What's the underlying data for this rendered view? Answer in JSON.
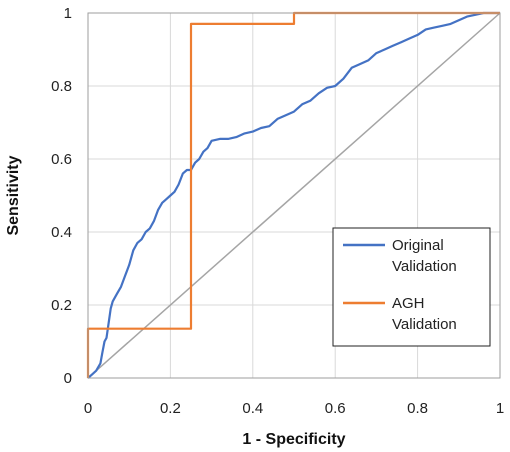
{
  "chart_data": {
    "type": "line",
    "xlabel": "1 - Specificity",
    "ylabel": "Sensitivity",
    "xlim": [
      0,
      1
    ],
    "ylim": [
      0,
      1
    ],
    "xticks": [
      "0",
      "0.2",
      "0.4",
      "0.6",
      "0.8",
      "1"
    ],
    "yticks": [
      "0",
      "0.2",
      "0.4",
      "0.6",
      "0.8",
      "1"
    ],
    "grid": true,
    "legend_position": "lower-right",
    "series": [
      {
        "name": "Original Validation",
        "color": "#4472C4",
        "points": [
          [
            0,
            0
          ],
          [
            0.01,
            0.01
          ],
          [
            0.02,
            0.02
          ],
          [
            0.03,
            0.04
          ],
          [
            0.035,
            0.07
          ],
          [
            0.04,
            0.1
          ],
          [
            0.045,
            0.11
          ],
          [
            0.05,
            0.15
          ],
          [
            0.055,
            0.19
          ],
          [
            0.06,
            0.21
          ],
          [
            0.07,
            0.23
          ],
          [
            0.08,
            0.25
          ],
          [
            0.09,
            0.28
          ],
          [
            0.1,
            0.31
          ],
          [
            0.11,
            0.35
          ],
          [
            0.12,
            0.37
          ],
          [
            0.13,
            0.38
          ],
          [
            0.14,
            0.4
          ],
          [
            0.15,
            0.41
          ],
          [
            0.16,
            0.43
          ],
          [
            0.17,
            0.46
          ],
          [
            0.18,
            0.48
          ],
          [
            0.19,
            0.49
          ],
          [
            0.2,
            0.5
          ],
          [
            0.21,
            0.51
          ],
          [
            0.22,
            0.53
          ],
          [
            0.23,
            0.56
          ],
          [
            0.24,
            0.57
          ],
          [
            0.25,
            0.57
          ],
          [
            0.26,
            0.59
          ],
          [
            0.27,
            0.6
          ],
          [
            0.28,
            0.62
          ],
          [
            0.29,
            0.63
          ],
          [
            0.3,
            0.65
          ],
          [
            0.32,
            0.655
          ],
          [
            0.34,
            0.655
          ],
          [
            0.36,
            0.66
          ],
          [
            0.38,
            0.67
          ],
          [
            0.4,
            0.675
          ],
          [
            0.42,
            0.685
          ],
          [
            0.44,
            0.69
          ],
          [
            0.46,
            0.71
          ],
          [
            0.48,
            0.72
          ],
          [
            0.5,
            0.73
          ],
          [
            0.52,
            0.75
          ],
          [
            0.54,
            0.76
          ],
          [
            0.56,
            0.78
          ],
          [
            0.58,
            0.795
          ],
          [
            0.6,
            0.8
          ],
          [
            0.62,
            0.82
          ],
          [
            0.64,
            0.85
          ],
          [
            0.66,
            0.86
          ],
          [
            0.68,
            0.87
          ],
          [
            0.7,
            0.89
          ],
          [
            0.72,
            0.9
          ],
          [
            0.74,
            0.91
          ],
          [
            0.76,
            0.92
          ],
          [
            0.78,
            0.93
          ],
          [
            0.8,
            0.94
          ],
          [
            0.82,
            0.955
          ],
          [
            0.84,
            0.96
          ],
          [
            0.86,
            0.965
          ],
          [
            0.88,
            0.97
          ],
          [
            0.9,
            0.98
          ],
          [
            0.92,
            0.99
          ],
          [
            0.94,
            0.995
          ],
          [
            0.96,
            1
          ],
          [
            1,
            1
          ]
        ]
      },
      {
        "name": "AGH Validation",
        "color": "#ED7D31",
        "points": [
          [
            0,
            0
          ],
          [
            0,
            0.135
          ],
          [
            0.25,
            0.135
          ],
          [
            0.25,
            0.97
          ],
          [
            0.5,
            0.97
          ],
          [
            0.5,
            1
          ],
          [
            1,
            1
          ]
        ]
      }
    ],
    "reference_line": {
      "color": "#A5A5A5",
      "points": [
        [
          0,
          0
        ],
        [
          1,
          1
        ]
      ]
    },
    "legend": {
      "entries": [
        {
          "lines": [
            "Original",
            "Validation"
          ],
          "color": "#4472C4"
        },
        {
          "lines": [
            "AGH",
            "Validation"
          ],
          "color": "#ED7D31"
        }
      ]
    }
  }
}
